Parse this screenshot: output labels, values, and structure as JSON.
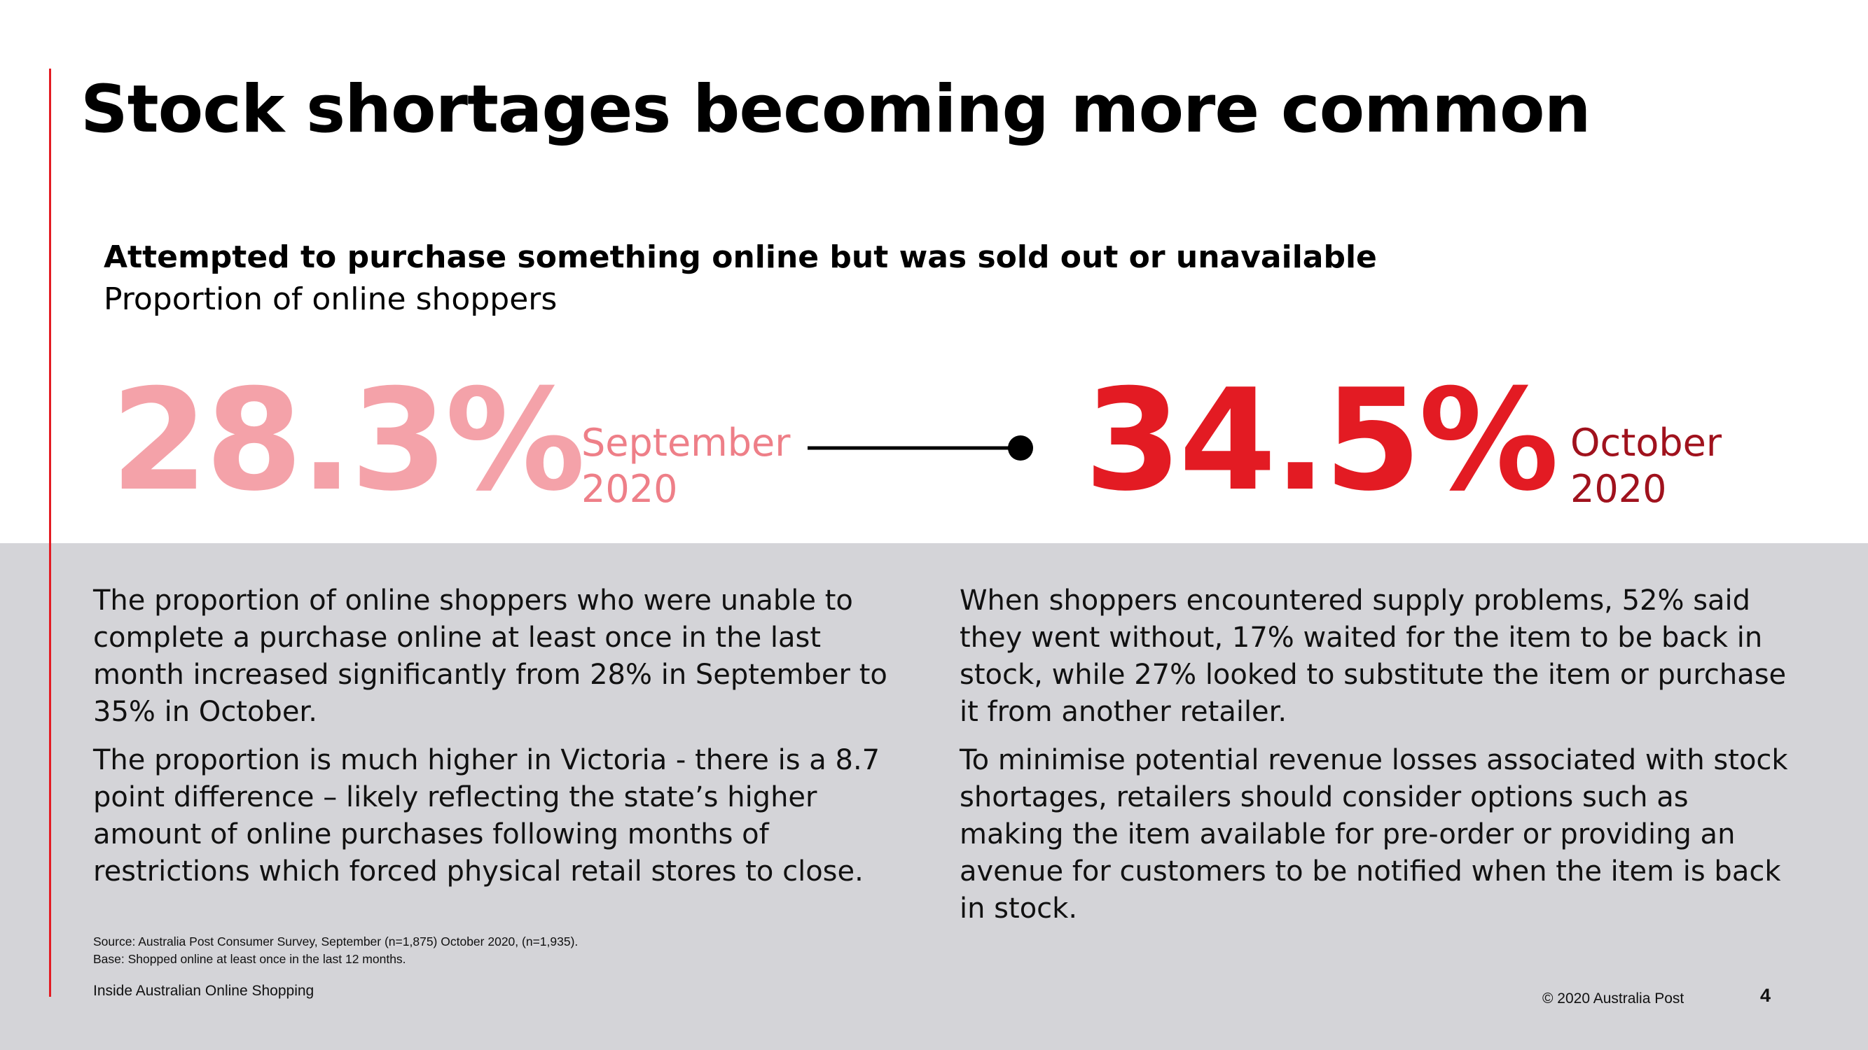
{
  "slide": {
    "title": "Stock shortages becoming more common",
    "metric_heading": "Attempted to purchase something online but was sold out or unavailable",
    "metric_subheading": "Proportion of online shoppers"
  },
  "comparison": {
    "before": {
      "value": "28.3%",
      "month": "September",
      "year": "2020"
    },
    "after": {
      "value": "34.5%",
      "month": "October",
      "year": "2020"
    }
  },
  "body": {
    "left": [
      "The proportion of online shoppers who were unable to complete a purchase online at least once in the last month increased significantly from 28% in September to 35% in October.",
      "The proportion is much higher in Victoria - there is a 8.7 point difference – likely reflecting the state’s higher amount of online purchases following months of restrictions which forced physical retail stores to close."
    ],
    "right": [
      "When shoppers encountered supply problems, 52% said they went without, 17% waited for the item to be back in stock, while 27% looked to substitute the item or purchase it from another retailer.",
      "To minimise potential revenue losses associated with stock shortages, retailers should consider options such as making the item available for pre-order or providing an avenue for customers to be notified when the item is back in stock."
    ]
  },
  "source": {
    "line1": "Source: Australia Post Consumer Survey, September (n=1,875) October 2020, (n=1,935).",
    "line2": "Base: Shopped online at least once in the last 12 months."
  },
  "footer": {
    "report_name": "Inside Australian Online Shopping",
    "copyright": "© 2020 Australia Post",
    "page_number": "4"
  },
  "colors": {
    "accent_red": "#e31b23",
    "light_pink": "#f4a2a9",
    "dark_red": "#a0121d",
    "panel_gray": "#d4d4d8"
  }
}
